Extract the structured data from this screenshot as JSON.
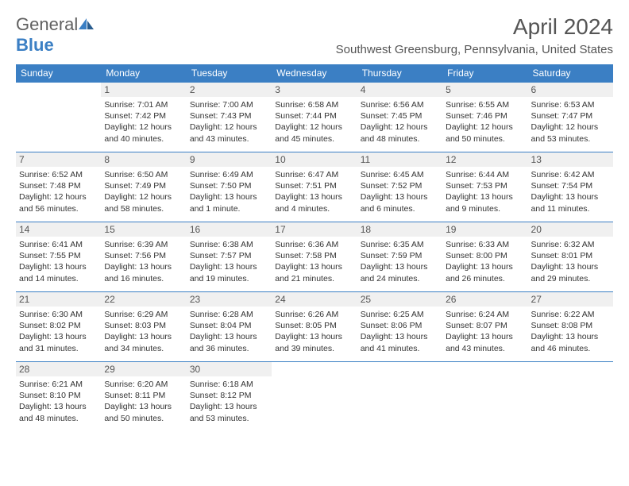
{
  "logo": {
    "text1": "General",
    "text2": "Blue"
  },
  "title": "April 2024",
  "location": "Southwest Greensburg, Pennsylvania, United States",
  "colors": {
    "accent": "#3b7fc4",
    "header_bg": "#3b7fc4",
    "daynum_bg": "#f0f0f0",
    "text": "#555"
  },
  "day_headers": [
    "Sunday",
    "Monday",
    "Tuesday",
    "Wednesday",
    "Thursday",
    "Friday",
    "Saturday"
  ],
  "weeks": [
    [
      null,
      {
        "n": "1",
        "sr": "Sunrise: 7:01 AM",
        "ss": "Sunset: 7:42 PM",
        "d1": "Daylight: 12 hours",
        "d2": "and 40 minutes."
      },
      {
        "n": "2",
        "sr": "Sunrise: 7:00 AM",
        "ss": "Sunset: 7:43 PM",
        "d1": "Daylight: 12 hours",
        "d2": "and 43 minutes."
      },
      {
        "n": "3",
        "sr": "Sunrise: 6:58 AM",
        "ss": "Sunset: 7:44 PM",
        "d1": "Daylight: 12 hours",
        "d2": "and 45 minutes."
      },
      {
        "n": "4",
        "sr": "Sunrise: 6:56 AM",
        "ss": "Sunset: 7:45 PM",
        "d1": "Daylight: 12 hours",
        "d2": "and 48 minutes."
      },
      {
        "n": "5",
        "sr": "Sunrise: 6:55 AM",
        "ss": "Sunset: 7:46 PM",
        "d1": "Daylight: 12 hours",
        "d2": "and 50 minutes."
      },
      {
        "n": "6",
        "sr": "Sunrise: 6:53 AM",
        "ss": "Sunset: 7:47 PM",
        "d1": "Daylight: 12 hours",
        "d2": "and 53 minutes."
      }
    ],
    [
      {
        "n": "7",
        "sr": "Sunrise: 6:52 AM",
        "ss": "Sunset: 7:48 PM",
        "d1": "Daylight: 12 hours",
        "d2": "and 56 minutes."
      },
      {
        "n": "8",
        "sr": "Sunrise: 6:50 AM",
        "ss": "Sunset: 7:49 PM",
        "d1": "Daylight: 12 hours",
        "d2": "and 58 minutes."
      },
      {
        "n": "9",
        "sr": "Sunrise: 6:49 AM",
        "ss": "Sunset: 7:50 PM",
        "d1": "Daylight: 13 hours",
        "d2": "and 1 minute."
      },
      {
        "n": "10",
        "sr": "Sunrise: 6:47 AM",
        "ss": "Sunset: 7:51 PM",
        "d1": "Daylight: 13 hours",
        "d2": "and 4 minutes."
      },
      {
        "n": "11",
        "sr": "Sunrise: 6:45 AM",
        "ss": "Sunset: 7:52 PM",
        "d1": "Daylight: 13 hours",
        "d2": "and 6 minutes."
      },
      {
        "n": "12",
        "sr": "Sunrise: 6:44 AM",
        "ss": "Sunset: 7:53 PM",
        "d1": "Daylight: 13 hours",
        "d2": "and 9 minutes."
      },
      {
        "n": "13",
        "sr": "Sunrise: 6:42 AM",
        "ss": "Sunset: 7:54 PM",
        "d1": "Daylight: 13 hours",
        "d2": "and 11 minutes."
      }
    ],
    [
      {
        "n": "14",
        "sr": "Sunrise: 6:41 AM",
        "ss": "Sunset: 7:55 PM",
        "d1": "Daylight: 13 hours",
        "d2": "and 14 minutes."
      },
      {
        "n": "15",
        "sr": "Sunrise: 6:39 AM",
        "ss": "Sunset: 7:56 PM",
        "d1": "Daylight: 13 hours",
        "d2": "and 16 minutes."
      },
      {
        "n": "16",
        "sr": "Sunrise: 6:38 AM",
        "ss": "Sunset: 7:57 PM",
        "d1": "Daylight: 13 hours",
        "d2": "and 19 minutes."
      },
      {
        "n": "17",
        "sr": "Sunrise: 6:36 AM",
        "ss": "Sunset: 7:58 PM",
        "d1": "Daylight: 13 hours",
        "d2": "and 21 minutes."
      },
      {
        "n": "18",
        "sr": "Sunrise: 6:35 AM",
        "ss": "Sunset: 7:59 PM",
        "d1": "Daylight: 13 hours",
        "d2": "and 24 minutes."
      },
      {
        "n": "19",
        "sr": "Sunrise: 6:33 AM",
        "ss": "Sunset: 8:00 PM",
        "d1": "Daylight: 13 hours",
        "d2": "and 26 minutes."
      },
      {
        "n": "20",
        "sr": "Sunrise: 6:32 AM",
        "ss": "Sunset: 8:01 PM",
        "d1": "Daylight: 13 hours",
        "d2": "and 29 minutes."
      }
    ],
    [
      {
        "n": "21",
        "sr": "Sunrise: 6:30 AM",
        "ss": "Sunset: 8:02 PM",
        "d1": "Daylight: 13 hours",
        "d2": "and 31 minutes."
      },
      {
        "n": "22",
        "sr": "Sunrise: 6:29 AM",
        "ss": "Sunset: 8:03 PM",
        "d1": "Daylight: 13 hours",
        "d2": "and 34 minutes."
      },
      {
        "n": "23",
        "sr": "Sunrise: 6:28 AM",
        "ss": "Sunset: 8:04 PM",
        "d1": "Daylight: 13 hours",
        "d2": "and 36 minutes."
      },
      {
        "n": "24",
        "sr": "Sunrise: 6:26 AM",
        "ss": "Sunset: 8:05 PM",
        "d1": "Daylight: 13 hours",
        "d2": "and 39 minutes."
      },
      {
        "n": "25",
        "sr": "Sunrise: 6:25 AM",
        "ss": "Sunset: 8:06 PM",
        "d1": "Daylight: 13 hours",
        "d2": "and 41 minutes."
      },
      {
        "n": "26",
        "sr": "Sunrise: 6:24 AM",
        "ss": "Sunset: 8:07 PM",
        "d1": "Daylight: 13 hours",
        "d2": "and 43 minutes."
      },
      {
        "n": "27",
        "sr": "Sunrise: 6:22 AM",
        "ss": "Sunset: 8:08 PM",
        "d1": "Daylight: 13 hours",
        "d2": "and 46 minutes."
      }
    ],
    [
      {
        "n": "28",
        "sr": "Sunrise: 6:21 AM",
        "ss": "Sunset: 8:10 PM",
        "d1": "Daylight: 13 hours",
        "d2": "and 48 minutes."
      },
      {
        "n": "29",
        "sr": "Sunrise: 6:20 AM",
        "ss": "Sunset: 8:11 PM",
        "d1": "Daylight: 13 hours",
        "d2": "and 50 minutes."
      },
      {
        "n": "30",
        "sr": "Sunrise: 6:18 AM",
        "ss": "Sunset: 8:12 PM",
        "d1": "Daylight: 13 hours",
        "d2": "and 53 minutes."
      },
      null,
      null,
      null,
      null
    ]
  ]
}
